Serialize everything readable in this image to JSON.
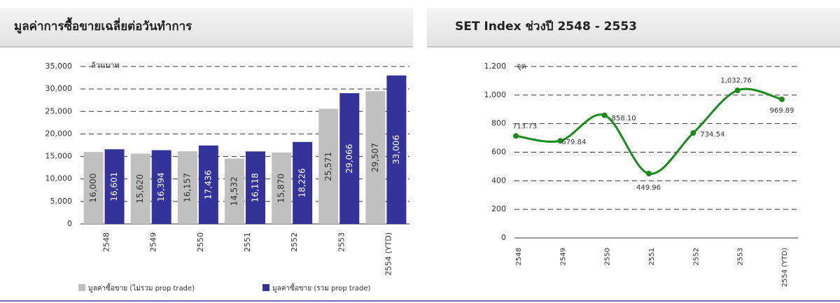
{
  "chart_data": [
    {
      "type": "bar",
      "title": "มูลค่าการซื้อขายเฉลี่ยต่อวันทำการ",
      "y_label": "ล้านบาท",
      "categories": [
        "2548",
        "2549",
        "2550",
        "2551",
        "2552",
        "2553",
        "2554 (YTD)"
      ],
      "series": [
        {
          "name": "มูลค่าซื้อขาย (ไม่รวม prop trade)",
          "color": "#c0c0c0",
          "values": [
            16000,
            15620,
            16157,
            14532,
            15870,
            25571,
            29507
          ],
          "value_labels": [
            "16,000",
            "15,620",
            "16,157",
            "14,532",
            "15,870",
            "25,571",
            "29,507"
          ]
        },
        {
          "name": "มูลค่าซื้อขาย (รวม prop trade)",
          "color": "#33339a",
          "values": [
            16601,
            16394,
            17436,
            16118,
            18226,
            29066,
            33006
          ],
          "value_labels": [
            "16,601",
            "16,394",
            "17,436",
            "16,118",
            "18,226",
            "29,066",
            "33,006"
          ]
        }
      ],
      "ylim": [
        0,
        35000
      ],
      "yticks": [
        0,
        {
          "value": 5000,
          "label": "5,000"
        },
        {
          "value": 10000,
          "label": "10,000"
        },
        {
          "value": 15000,
          "label": "15,000"
        },
        {
          "value": 20000,
          "label": "20,000"
        },
        {
          "value": 25000,
          "label": "25,000"
        },
        {
          "value": 30000,
          "label": "30,000"
        },
        {
          "value": 35000,
          "label": "35,000"
        }
      ],
      "grid": true
    },
    {
      "type": "line",
      "title": "SET Index ช่วงปี 2548 - 2553",
      "y_label": "จุด",
      "categories": [
        "2548",
        "2549",
        "2550",
        "2551",
        "2552",
        "2553",
        "2554 (YTD)"
      ],
      "values": [
        713.73,
        679.84,
        858.1,
        449.96,
        734.54,
        1032.76,
        969.89
      ],
      "value_labels": [
        "713.73",
        "679.84",
        "858.10",
        "449.96",
        "734.54",
        "1,032.76",
        "969.89"
      ],
      "color": "#1a8a1a",
      "ylim": [
        0,
        1200
      ],
      "yticks": [
        0,
        200,
        400,
        600,
        800,
        {
          "value": 1000,
          "label": "1,000"
        },
        {
          "value": 1200,
          "label": "1,200"
        }
      ],
      "grid": true
    }
  ]
}
